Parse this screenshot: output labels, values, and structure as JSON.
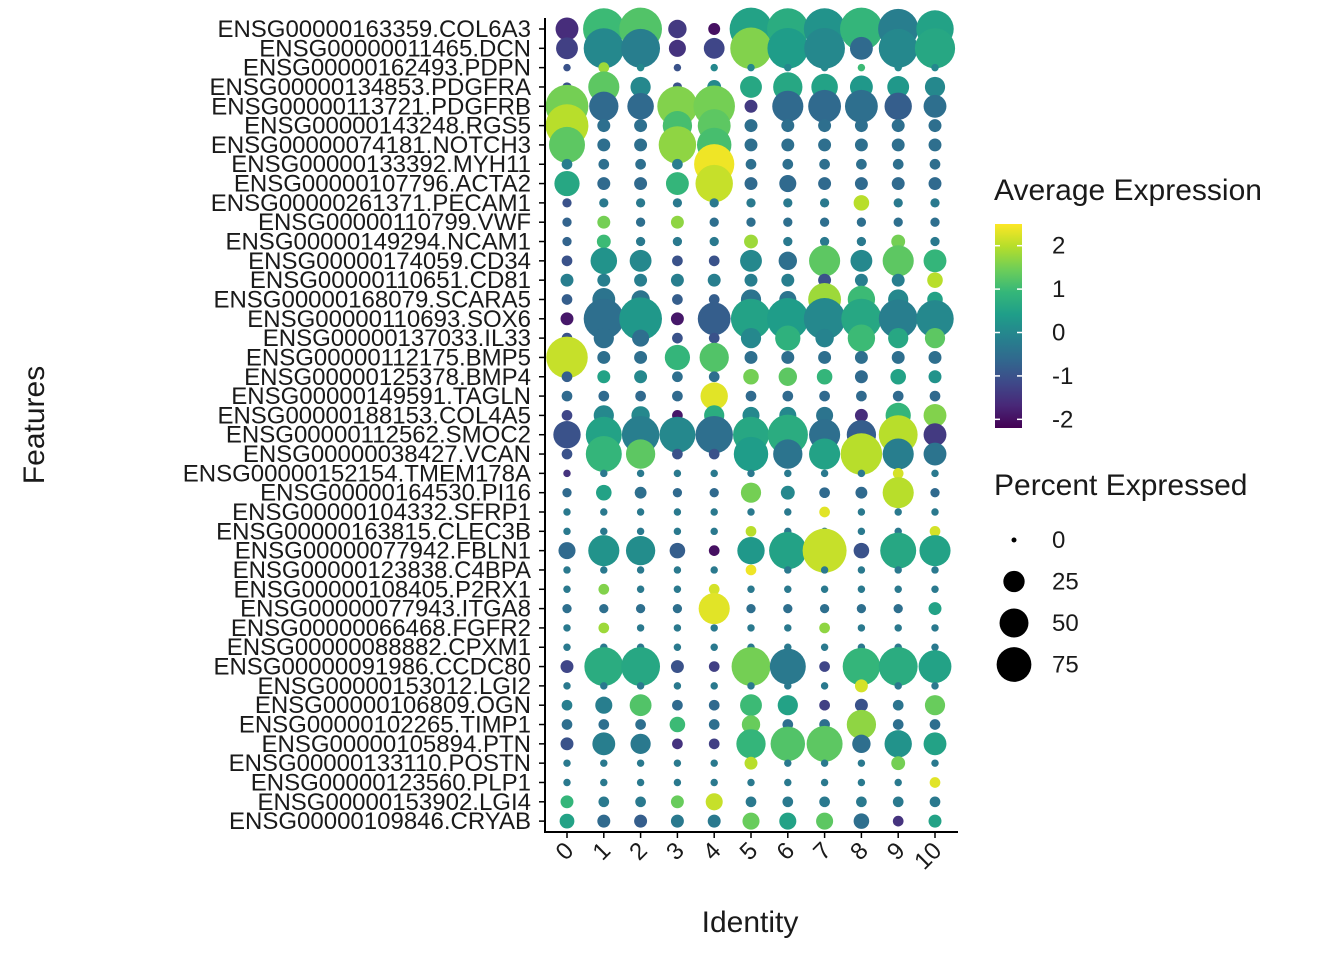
{
  "chart_data": {
    "type": "dotplot",
    "xlabel": "Identity",
    "ylabel": "Features",
    "clusters": [
      "0",
      "1",
      "2",
      "3",
      "4",
      "5",
      "6",
      "7",
      "8",
      "9",
      "10"
    ],
    "features": [
      "ENSG00000163359.COL6A3",
      "ENSG00000011465.DCN",
      "ENSG00000162493.PDPN",
      "ENSG00000134853.PDGFRA",
      "ENSG00000113721.PDGFRB",
      "ENSG00000143248.RGS5",
      "ENSG00000074181.NOTCH3",
      "ENSG00000133392.MYH11",
      "ENSG00000107796.ACTA2",
      "ENSG00000261371.PECAM1",
      "ENSG00000110799.VWF",
      "ENSG00000149294.NCAM1",
      "ENSG00000174059.CD34",
      "ENSG00000110651.CD81",
      "ENSG00000168079.SCARA5",
      "ENSG00000110693.SOX6",
      "ENSG00000137033.IL33",
      "ENSG00000112175.BMP5",
      "ENSG00000125378.BMP4",
      "ENSG00000149591.TAGLN",
      "ENSG00000188153.COL4A5",
      "ENSG00000112562.SMOC2",
      "ENSG00000038427.VCAN",
      "ENSG00000152154.TMEM178A",
      "ENSG00000164530.PI16",
      "ENSG00000104332.SFRP1",
      "ENSG00000163815.CLEC3B",
      "ENSG00000077942.FBLN1",
      "ENSG00000123838.C4BPA",
      "ENSG00000108405.P2RX1",
      "ENSG00000077943.ITGA8",
      "ENSG00000066468.FGFR2",
      "ENSG00000088882.CPXM1",
      "ENSG00000091986.CCDC80",
      "ENSG00000153012.LGI2",
      "ENSG00000106809.OGN",
      "ENSG00000102265.TIMP1",
      "ENSG00000105894.PTN",
      "ENSG00000133110.POSTN",
      "ENSG00000123560.PLP1",
      "ENSG00000153902.LGI4",
      "ENSG00000109846.CRYAB"
    ],
    "avg_exp": [
      [
        -1.6,
        1,
        1.2,
        -1.4,
        -2,
        0.5,
        0.7,
        0.2,
        0.9,
        -0.2,
        0.5
      ],
      [
        -1.3,
        0,
        -0.2,
        -1.5,
        -1.2,
        1.6,
        0.4,
        0,
        -0.6,
        0,
        0.6
      ],
      [
        -1,
        1.8,
        0,
        -1,
        0,
        0,
        0,
        0,
        1,
        0,
        0
      ],
      [
        -1,
        1.3,
        0,
        -1,
        0,
        0.6,
        0.6,
        0.5,
        0.3,
        0.3,
        0
      ],
      [
        1.5,
        -0.6,
        -0.6,
        1.6,
        1.5,
        -1.4,
        -0.6,
        -0.6,
        -0.5,
        -0.8,
        -0.5
      ],
      [
        2,
        -0.5,
        -0.5,
        1.1,
        1.3,
        -0.5,
        -0.5,
        -0.5,
        -0.5,
        -0.5,
        -0.5
      ],
      [
        1.3,
        -0.5,
        -0.5,
        1.7,
        1.1,
        -0.5,
        -0.5,
        -0.5,
        -0.5,
        -0.5,
        -0.5
      ],
      [
        -0.2,
        -0.5,
        -0.5,
        -0.2,
        2.4,
        -0.5,
        -0.5,
        -0.5,
        -0.5,
        -0.5,
        -0.5
      ],
      [
        0.6,
        -0.6,
        -0.6,
        0.9,
        2.1,
        -0.6,
        -0.6,
        -0.6,
        -0.6,
        -0.6,
        -0.6
      ],
      [
        -1,
        -0.3,
        -0.3,
        -0.3,
        -0.3,
        -0.3,
        -0.3,
        -0.3,
        2,
        -0.3,
        -0.3
      ],
      [
        -0.7,
        1.5,
        -0.5,
        1.7,
        -0.5,
        -0.5,
        -0.5,
        -0.5,
        -0.5,
        -0.5,
        -0.5
      ],
      [
        -0.7,
        1,
        -0.3,
        -0.3,
        -0.3,
        1.8,
        -0.3,
        -0.3,
        -0.3,
        1.5,
        -0.3
      ],
      [
        -1,
        0.2,
        0,
        -1,
        -1,
        0,
        -0.5,
        1.3,
        0,
        1.3,
        0.9
      ],
      [
        -0.2,
        -0.2,
        -0.2,
        -0.2,
        -0.2,
        -0.2,
        -0.2,
        -1,
        -0.2,
        -0.2,
        2
      ],
      [
        -0.8,
        -0.4,
        -0.4,
        -0.8,
        -0.8,
        -0.4,
        -0.4,
        1.8,
        1,
        0,
        0.5
      ],
      [
        -1.9,
        -0.5,
        0.3,
        -1.9,
        -0.8,
        0.5,
        0.4,
        0,
        0.6,
        -0.2,
        0
      ],
      [
        -1,
        -0.5,
        -0.5,
        -1,
        -1,
        0,
        0.8,
        -0.1,
        1,
        0.6,
        1.3
      ],
      [
        2.1,
        -0.5,
        -0.5,
        0.9,
        1.2,
        -0.5,
        -0.5,
        -0.5,
        -0.5,
        -0.5,
        -0.5
      ],
      [
        -0.8,
        0.5,
        0,
        -0.5,
        -0.5,
        1.5,
        1.3,
        0.9,
        -0.6,
        0.5,
        0.2
      ],
      [
        -0.6,
        -0.6,
        -0.6,
        -0.6,
        2.3,
        -0.6,
        -0.6,
        -0.6,
        -0.6,
        -0.6,
        -0.6
      ],
      [
        -1.2,
        0,
        0,
        -1.9,
        0.7,
        0,
        0,
        -0.4,
        -1.6,
        0.9,
        1.6
      ],
      [
        -1,
        0.5,
        -0.2,
        0,
        -0.5,
        0.6,
        0.7,
        -0.5,
        -0.8,
        2,
        -1.4
      ],
      [
        -1,
        0.9,
        1.3,
        -1,
        -1,
        0.4,
        -0.4,
        0.5,
        2,
        -0.2,
        -0.4
      ],
      [
        -1.5,
        -0.3,
        -0.3,
        -0.3,
        -0.3,
        -0.3,
        -0.3,
        -0.3,
        -0.3,
        2.2,
        -0.3
      ],
      [
        -0.6,
        0.5,
        -0.5,
        -0.6,
        -0.6,
        1.5,
        0,
        -0.6,
        -0.6,
        2,
        -0.6
      ],
      [
        -0.3,
        -0.3,
        -0.3,
        -0.3,
        -0.3,
        -0.3,
        -0.3,
        2.3,
        -0.3,
        -0.3,
        -0.3
      ],
      [
        -0.3,
        -0.3,
        -0.3,
        -0.3,
        -0.3,
        2,
        -0.3,
        -0.3,
        -0.3,
        -0.3,
        2.2
      ],
      [
        -0.6,
        0.2,
        0.1,
        -0.8,
        -2,
        0.3,
        0.5,
        2.1,
        -1,
        0.6,
        0.5
      ],
      [
        -0.3,
        -0.3,
        -0.3,
        -0.3,
        -0.3,
        2.4,
        -0.3,
        -0.3,
        -0.3,
        -0.3,
        -0.3
      ],
      [
        -0.3,
        1.6,
        -0.3,
        -0.3,
        2.2,
        -0.3,
        -0.3,
        -0.3,
        -0.3,
        -0.3,
        -0.3
      ],
      [
        -0.5,
        -0.5,
        -0.5,
        -0.5,
        2.3,
        -0.5,
        -0.5,
        -0.5,
        -0.5,
        -0.5,
        0.5
      ],
      [
        -0.3,
        1.8,
        -0.3,
        -0.3,
        -0.3,
        -0.3,
        -0.3,
        1.7,
        -0.3,
        -0.3,
        -0.3
      ],
      [
        -0.3,
        -0.3,
        -0.3,
        -0.3,
        -0.3,
        -0.3,
        -0.3,
        -0.3,
        -0.3,
        -0.3,
        -0.3
      ],
      [
        -1.2,
        0.7,
        0.6,
        -1,
        -1.3,
        1.5,
        -0.3,
        -1.2,
        0.9,
        0.7,
        0.5
      ],
      [
        -0.3,
        -0.3,
        -0.3,
        -0.3,
        -0.3,
        -0.3,
        -0.3,
        -0.3,
        2.2,
        -0.3,
        -0.3
      ],
      [
        -0.2,
        -0.2,
        1.2,
        -0.6,
        -0.6,
        1,
        0.5,
        -1.3,
        -1,
        -0.4,
        1.4
      ],
      [
        -0.5,
        -0.5,
        -0.5,
        1,
        -0.5,
        1.4,
        -0.5,
        -0.5,
        1.7,
        -0.5,
        -0.5
      ],
      [
        -1,
        -0.2,
        -0.3,
        -1.5,
        -1.3,
        0.9,
        1.2,
        1.3,
        -0.5,
        0.2,
        0.5
      ],
      [
        -0.3,
        -0.3,
        -0.3,
        -0.3,
        -0.3,
        2,
        -0.3,
        -0.3,
        -0.3,
        1.5,
        -0.3
      ],
      [
        -0.3,
        -0.3,
        -0.3,
        -0.3,
        -0.3,
        -0.3,
        -0.3,
        -0.3,
        -0.3,
        -0.3,
        2.3
      ],
      [
        0.9,
        -0.3,
        -0.3,
        1.4,
        2.1,
        -0.3,
        -0.3,
        -0.3,
        -0.3,
        -0.3,
        -0.3
      ],
      [
        0.5,
        -0.6,
        -0.8,
        -0.3,
        -0.3,
        1.4,
        0.5,
        1.3,
        -0.5,
        -1.5,
        0.5
      ]
    ],
    "pct_exp": [
      [
        20,
        75,
        80,
        12,
        4,
        80,
        75,
        75,
        80,
        70,
        60
      ],
      [
        18,
        70,
        65,
        10,
        16,
        75,
        72,
        72,
        20,
        65,
        70
      ],
      [
        1,
        3,
        1,
        1,
        1,
        1,
        1,
        1,
        1,
        1,
        1
      ],
      [
        2,
        40,
        15,
        2,
        6,
        18,
        35,
        28,
        20,
        18,
        15
      ],
      [
        80,
        35,
        28,
        70,
        75,
        5,
        40,
        45,
        45,
        30,
        20
      ],
      [
        80,
        5,
        5,
        35,
        45,
        5,
        5,
        5,
        5,
        5,
        5
      ],
      [
        55,
        5,
        5,
        60,
        50,
        5,
        5,
        5,
        5,
        5,
        5
      ],
      [
        3,
        3,
        3,
        3,
        70,
        3,
        3,
        3,
        3,
        3,
        3
      ],
      [
        25,
        5,
        5,
        20,
        60,
        5,
        10,
        5,
        5,
        5,
        5
      ],
      [
        2,
        2,
        2,
        2,
        2,
        2,
        2,
        2,
        8,
        2,
        2
      ],
      [
        2,
        5,
        2,
        5,
        2,
        2,
        2,
        2,
        2,
        2,
        2
      ],
      [
        2,
        6,
        2,
        2,
        2,
        6,
        2,
        2,
        2,
        6,
        2
      ],
      [
        3,
        28,
        18,
        3,
        3,
        18,
        12,
        40,
        18,
        40,
        20
      ],
      [
        5,
        5,
        5,
        5,
        5,
        5,
        5,
        5,
        5,
        5,
        8
      ],
      [
        3,
        20,
        12,
        3,
        3,
        15,
        10,
        45,
        30,
        15,
        8
      ],
      [
        5,
        70,
        80,
        5,
        45,
        70,
        75,
        75,
        70,
        65,
        60
      ],
      [
        3,
        15,
        10,
        3,
        3,
        15,
        25,
        12,
        30,
        15,
        15
      ],
      [
        75,
        5,
        5,
        25,
        35,
        5,
        5,
        5,
        5,
        5,
        5
      ],
      [
        3,
        5,
        5,
        3,
        3,
        8,
        12,
        8,
        5,
        8,
        5
      ],
      [
        3,
        3,
        3,
        3,
        30,
        3,
        3,
        3,
        3,
        3,
        3
      ],
      [
        3,
        15,
        12,
        3,
        15,
        10,
        10,
        10,
        5,
        25,
        20
      ],
      [
        30,
        55,
        60,
        55,
        60,
        55,
        70,
        40,
        35,
        65,
        20
      ],
      [
        3,
        55,
        35,
        3,
        3,
        50,
        35,
        40,
        75,
        40,
        20
      ],
      [
        1,
        1,
        1,
        1,
        1,
        1,
        1,
        1,
        1,
        3,
        1
      ],
      [
        2,
        8,
        4,
        2,
        2,
        15,
        6,
        3,
        4,
        40,
        2
      ],
      [
        1,
        1,
        1,
        1,
        1,
        1,
        1,
        3,
        1,
        1,
        1
      ],
      [
        1,
        1,
        1,
        1,
        1,
        3,
        1,
        1,
        1,
        1,
        3
      ],
      [
        10,
        40,
        35,
        8,
        3,
        30,
        60,
        85,
        8,
        55,
        40
      ],
      [
        1,
        1,
        1,
        1,
        1,
        3,
        1,
        1,
        1,
        1,
        1
      ],
      [
        1,
        3,
        1,
        1,
        3,
        1,
        1,
        1,
        1,
        1,
        1
      ],
      [
        2,
        2,
        2,
        2,
        40,
        2,
        2,
        2,
        2,
        2,
        5
      ],
      [
        1,
        3,
        1,
        1,
        1,
        1,
        1,
        3,
        1,
        1,
        1
      ],
      [
        1,
        1,
        1,
        1,
        1,
        1,
        1,
        1,
        1,
        1,
        1
      ],
      [
        5,
        65,
        65,
        5,
        3,
        65,
        55,
        3,
        60,
        65,
        45
      ],
      [
        1,
        1,
        1,
        1,
        1,
        1,
        1,
        1,
        5,
        1,
        1
      ],
      [
        3,
        10,
        18,
        3,
        3,
        18,
        15,
        3,
        5,
        3,
        15
      ],
      [
        3,
        3,
        3,
        8,
        3,
        12,
        3,
        3,
        35,
        3,
        3
      ],
      [
        5,
        20,
        15,
        3,
        3,
        35,
        50,
        55,
        12,
        30,
        20
      ],
      [
        1,
        1,
        1,
        1,
        1,
        5,
        1,
        1,
        1,
        6,
        1
      ],
      [
        1,
        1,
        1,
        1,
        1,
        1,
        1,
        1,
        1,
        1,
        3
      ],
      [
        5,
        3,
        3,
        5,
        10,
        3,
        3,
        3,
        3,
        3,
        3
      ],
      [
        7,
        5,
        5,
        5,
        5,
        10,
        10,
        10,
        8,
        3,
        5
      ]
    ],
    "legend_color": {
      "title": "Average Expression",
      "ticks": [
        2,
        1,
        0,
        -1,
        -2
      ],
      "range": [
        -2.2,
        2.5
      ]
    },
    "legend_size": {
      "title": "Percent Expressed",
      "ticks": [
        0,
        25,
        50,
        75
      ]
    },
    "colormap": [
      "#440154",
      "#482878",
      "#3e4989",
      "#31688e",
      "#26828e",
      "#1f9e89",
      "#35b779",
      "#6ece58",
      "#b5de2b",
      "#fde725"
    ],
    "grid": false
  }
}
